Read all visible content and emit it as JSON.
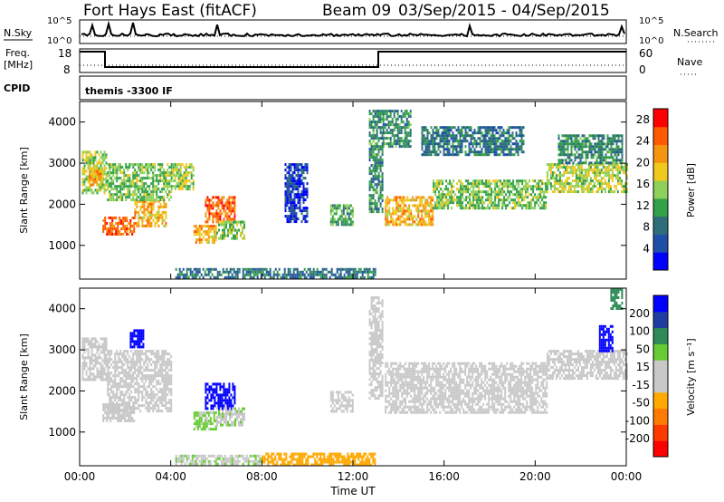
{
  "header": {
    "title": "Fort Hays East (fitACF)",
    "beam_label": "Beam 09",
    "date_range": "03/Sep/2015 - 04/Sep/2015"
  },
  "status_panels": {
    "nsky_label": "N.Sky",
    "nsky_ticks": [
      "10^5",
      "10^0"
    ],
    "nsearch_label": "N.Search",
    "nsearch_ticks": [
      "10^5",
      "10^0"
    ],
    "freq_label_line1": "Freq.",
    "freq_label_line2": "[MHz]",
    "freq_ticks": [
      "18",
      "8"
    ],
    "nave_label": "Nave",
    "nave_ticks": [
      "60",
      "0"
    ],
    "cpid_label": "CPID",
    "cpid_text": "themis -3300 IF"
  },
  "colors": {
    "power_scale": [
      "#0000ff",
      "#1f4fa8",
      "#2e6e7a",
      "#33a04a",
      "#8fd05a",
      "#f0c81e",
      "#f59410",
      "#ff5a00",
      "#ff0000"
    ],
    "velocity_scale": [
      "#ff0000",
      "#ff3a00",
      "#ff7a00",
      "#ffa800",
      "#c8c8c8",
      "#c8c8c8",
      "#66cc33",
      "#2e8b57",
      "#1f3fa0",
      "#0000ff"
    ],
    "ground_scatter": "#c8c8c8"
  },
  "chart_data": [
    {
      "type": "heatmap",
      "name": "power",
      "xlabel": "",
      "ylabel": "Slant Range [km]",
      "x_ticks": [
        "00:00",
        "04:00",
        "08:00",
        "12:00",
        "16:00",
        "20:00",
        "00:00"
      ],
      "y_ticks": [
        1000,
        2000,
        3000,
        4000
      ],
      "xlim_hours": [
        0,
        24
      ],
      "ylim_km": [
        180,
        4500
      ],
      "colorbar": {
        "label": "Power [dB]",
        "ticks": [
          4,
          8,
          12,
          16,
          20,
          24,
          28
        ],
        "range": [
          0,
          30
        ]
      },
      "regions": [
        {
          "t": [
            0.1,
            1.2
          ],
          "r": [
            2300,
            3300
          ],
          "val": 16
        },
        {
          "t": [
            0.4,
            1.0
          ],
          "r": [
            2500,
            2900
          ],
          "val": 20
        },
        {
          "t": [
            1.0,
            2.4
          ],
          "r": [
            1250,
            1700
          ],
          "val": 24
        },
        {
          "t": [
            2.4,
            3.8
          ],
          "r": [
            1500,
            2100
          ],
          "val": 20
        },
        {
          "t": [
            1.2,
            4.0
          ],
          "r": [
            2100,
            3000
          ],
          "val": 14
        },
        {
          "t": [
            4.0,
            5.0
          ],
          "r": [
            2400,
            3000
          ],
          "val": 16
        },
        {
          "t": [
            5.5,
            6.8
          ],
          "r": [
            1600,
            2200
          ],
          "val": 24
        },
        {
          "t": [
            5.0,
            6.0
          ],
          "r": [
            1100,
            1500
          ],
          "val": 20
        },
        {
          "t": [
            6.0,
            7.2
          ],
          "r": [
            1150,
            1600
          ],
          "val": 14
        },
        {
          "t": [
            4.2,
            13.0
          ],
          "r": [
            190,
            450
          ],
          "val": 8
        },
        {
          "t": [
            9.0,
            10.0
          ],
          "r": [
            1600,
            3000
          ],
          "val": 4
        },
        {
          "t": [
            11.0,
            12.0
          ],
          "r": [
            1500,
            2000
          ],
          "val": 12
        },
        {
          "t": [
            12.7,
            13.3
          ],
          "r": [
            1800,
            4300
          ],
          "val": 10
        },
        {
          "t": [
            13.4,
            15.5
          ],
          "r": [
            1500,
            2200
          ],
          "val": 20
        },
        {
          "t": [
            15.5,
            20.5
          ],
          "r": [
            1900,
            2600
          ],
          "val": 14
        },
        {
          "t": [
            13.3,
            14.5
          ],
          "r": [
            3400,
            4300
          ],
          "val": 10
        },
        {
          "t": [
            15.0,
            19.5
          ],
          "r": [
            3200,
            3900
          ],
          "val": 8
        },
        {
          "t": [
            20.5,
            24.0
          ],
          "r": [
            2300,
            3000
          ],
          "val": 16
        },
        {
          "t": [
            21.0,
            23.8
          ],
          "r": [
            3000,
            3700
          ],
          "val": 10
        }
      ]
    },
    {
      "type": "heatmap",
      "name": "velocity",
      "xlabel": "Time UT",
      "ylabel": "Slant Range [km]",
      "x_ticks": [
        "00:00",
        "04:00",
        "08:00",
        "12:00",
        "16:00",
        "20:00",
        "00:00"
      ],
      "y_ticks": [
        1000,
        2000,
        3000,
        4000
      ],
      "xlim_hours": [
        0,
        24
      ],
      "ylim_km": [
        180,
        4500
      ],
      "colorbar": {
        "label": "Velocity [m s⁻¹]",
        "ticks": [
          -200,
          -100,
          -50,
          -15,
          15,
          50,
          100,
          200
        ],
        "range": [
          -250,
          250
        ]
      },
      "regions": [
        {
          "t": [
            0.1,
            1.2
          ],
          "r": [
            2300,
            3300
          ],
          "val": 0
        },
        {
          "t": [
            1.0,
            2.4
          ],
          "r": [
            1250,
            1700
          ],
          "val": 0
        },
        {
          "t": [
            1.2,
            4.0
          ],
          "r": [
            1500,
            3000
          ],
          "val": 0
        },
        {
          "t": [
            2.2,
            2.8
          ],
          "r": [
            3100,
            3500
          ],
          "val": 220
        },
        {
          "t": [
            5.5,
            6.8
          ],
          "r": [
            1600,
            2200
          ],
          "val": 220
        },
        {
          "t": [
            5.0,
            6.0
          ],
          "r": [
            1100,
            1500
          ],
          "val": 60
        },
        {
          "t": [
            6.0,
            7.2
          ],
          "r": [
            1150,
            1600
          ],
          "val": 40
        },
        {
          "t": [
            4.2,
            8.0
          ],
          "r": [
            190,
            450
          ],
          "val": 40
        },
        {
          "t": [
            8.0,
            13.0
          ],
          "r": [
            190,
            500
          ],
          "val": -70
        },
        {
          "t": [
            11.0,
            12.0
          ],
          "r": [
            1500,
            2000
          ],
          "val": 0
        },
        {
          "t": [
            12.7,
            13.3
          ],
          "r": [
            1800,
            4300
          ],
          "val": 0
        },
        {
          "t": [
            13.4,
            20.5
          ],
          "r": [
            1500,
            2700
          ],
          "val": 0
        },
        {
          "t": [
            20.5,
            24.0
          ],
          "r": [
            2300,
            3000
          ],
          "val": 0
        },
        {
          "t": [
            22.8,
            23.4
          ],
          "r": [
            3000,
            3600
          ],
          "val": 220
        },
        {
          "t": [
            23.3,
            23.8
          ],
          "r": [
            4000,
            4500
          ],
          "val": 120
        }
      ]
    }
  ]
}
